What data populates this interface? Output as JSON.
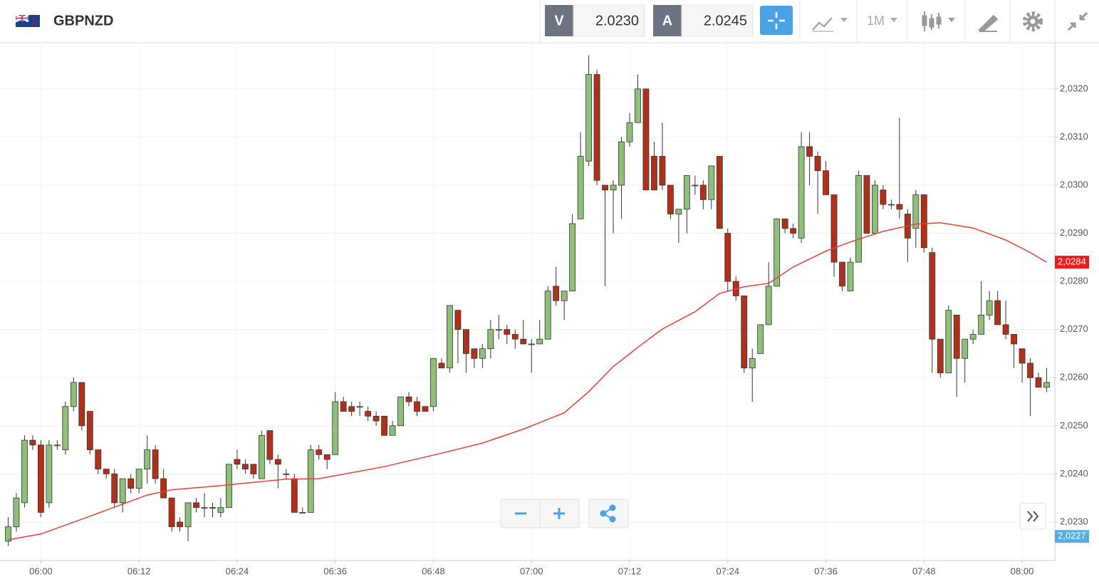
{
  "toolbar": {
    "symbol": "GBPNZD",
    "bid_label": "V",
    "bid": "2.0230",
    "ask_label": "A",
    "ask": "2.0245",
    "timeframe": "1M"
  },
  "chart_data": {
    "type": "candlestick",
    "up_color": "#8fbf7a",
    "down_color": "#b0301a",
    "x": [
      "05:56",
      "05:57",
      "05:58",
      "05:59",
      "06:00",
      "06:01",
      "06:02",
      "06:03",
      "06:04",
      "06:05",
      "06:06",
      "06:07",
      "06:08",
      "06:09",
      "06:10",
      "06:11",
      "06:12",
      "06:13",
      "06:14",
      "06:15",
      "06:16",
      "06:17",
      "06:18",
      "06:19",
      "06:20",
      "06:21",
      "06:22",
      "06:23",
      "06:24",
      "06:25",
      "06:26",
      "06:27",
      "06:28",
      "06:29",
      "06:30",
      "06:31",
      "06:32",
      "06:33",
      "06:34",
      "06:35",
      "06:36",
      "06:37",
      "06:38",
      "06:39",
      "06:40",
      "06:41",
      "06:42",
      "06:43",
      "06:44",
      "06:45",
      "06:46",
      "06:47",
      "06:48",
      "06:49",
      "06:50",
      "06:51",
      "06:52",
      "06:53",
      "06:54",
      "06:55",
      "06:56",
      "06:57",
      "06:58",
      "06:59",
      "07:00",
      "07:01",
      "07:02",
      "07:03",
      "07:04",
      "07:05",
      "07:06",
      "07:07",
      "07:08",
      "07:09",
      "07:10",
      "07:11",
      "07:12",
      "07:13",
      "07:14",
      "07:15",
      "07:16",
      "07:17",
      "07:18",
      "07:19",
      "07:20",
      "07:21",
      "07:22",
      "07:23",
      "07:24",
      "07:25",
      "07:26",
      "07:27",
      "07:28",
      "07:29",
      "07:30",
      "07:31",
      "07:32",
      "07:33",
      "07:34",
      "07:35",
      "07:36",
      "07:37",
      "07:38",
      "07:39",
      "07:40",
      "07:41",
      "07:42",
      "07:43",
      "07:44",
      "07:45",
      "07:46",
      "07:47",
      "07:48",
      "07:49",
      "07:50",
      "07:51",
      "07:52",
      "07:53",
      "07:54",
      "07:55",
      "07:56",
      "07:57",
      "07:58",
      "07:59",
      "08:00",
      "08:01",
      "08:02",
      "08:03"
    ],
    "open": [
      2.0226,
      2.0229,
      2.0234,
      2.0247,
      2.0246,
      2.0234,
      2.0246,
      2.0245,
      2.0254,
      2.0259,
      2.0253,
      2.0245,
      2.0241,
      2.024,
      2.0234,
      2.0239,
      2.0237,
      2.0241,
      2.0245,
      2.0239,
      2.0235,
      2.023,
      2.0229,
      2.0234,
      2.0233,
      2.0233,
      2.0232,
      2.0233,
      2.0243,
      2.0242,
      2.0242,
      2.0239,
      2.0249,
      2.0243,
      2.024,
      2.0239,
      2.0232,
      2.0232,
      2.0245,
      2.0244,
      2.0244,
      2.0255,
      2.0254,
      2.0254,
      2.0253,
      2.0252,
      2.0252,
      2.0248,
      2.025,
      2.0256,
      2.0255,
      2.0254,
      2.0254,
      2.0263,
      2.0262,
      2.0274,
      2.027,
      2.0266,
      2.0264,
      2.0266,
      2.027,
      2.027,
      2.0269,
      2.0268,
      2.0267,
      2.0267,
      2.0268,
      2.0279,
      2.0276,
      2.0278,
      2.0293,
      2.0305,
      2.0323,
      2.03,
      2.0299,
      2.03,
      2.0309,
      2.0313,
      2.032,
      2.0306,
      2.0306,
      2.03,
      2.0294,
      2.0295,
      2.03,
      2.03,
      2.0297,
      2.0306,
      2.029,
      2.028,
      2.0277,
      2.0262,
      2.0265,
      2.0271,
      2.0279,
      2.0293,
      2.0291,
      2.0289,
      2.0308,
      2.0306,
      2.0303,
      2.0298,
      2.0284,
      2.0278,
      2.0284,
      2.0302,
      2.029,
      2.0299,
      2.0296,
      2.0296,
      2.0294,
      2.0291,
      2.0298,
      2.0286,
      2.0268,
      2.0261,
      2.0273,
      2.0264,
      2.0268,
      2.0269,
      2.0273,
      2.0276,
      2.0271,
      2.0269,
      2.0266,
      2.0263,
      2.026,
      2.0258
    ],
    "high": [
      2.0231,
      2.0236,
      2.0248,
      2.0248,
      2.0247,
      2.0247,
      2.0247,
      2.0255,
      2.026,
      2.0259,
      2.0253,
      2.0245,
      2.0241,
      2.0241,
      2.0239,
      2.024,
      2.0241,
      2.0248,
      2.0246,
      2.0241,
      2.0235,
      2.0231,
      2.0234,
      2.0235,
      2.0236,
      2.0234,
      2.0235,
      2.0242,
      2.0245,
      2.0243,
      2.0242,
      2.0249,
      2.0249,
      2.0244,
      2.0241,
      2.024,
      2.0233,
      2.0246,
      2.0246,
      2.0244,
      2.0257,
      2.0256,
      2.0255,
      2.0255,
      2.0254,
      2.0253,
      2.0252,
      2.0251,
      2.0256,
      2.0257,
      2.0256,
      2.0254,
      2.0264,
      2.0264,
      2.0275,
      2.0274,
      2.027,
      2.0266,
      2.0267,
      2.0272,
      2.0273,
      2.0271,
      2.027,
      2.0272,
      2.0268,
      2.0272,
      2.0279,
      2.0283,
      2.0278,
      2.0294,
      2.0311,
      2.0327,
      2.0324,
      2.03,
      2.0301,
      2.031,
      2.0315,
      2.0323,
      2.032,
      2.0309,
      2.0313,
      2.03,
      2.0295,
      2.0302,
      2.0302,
      2.0301,
      2.0304,
      2.0306,
      2.0291,
      2.0281,
      2.0277,
      2.0266,
      2.0271,
      2.0284,
      2.0293,
      2.0293,
      2.0292,
      2.0311,
      2.0311,
      2.0307,
      2.0305,
      2.0298,
      2.0284,
      2.0285,
      2.0303,
      2.0302,
      2.0301,
      2.03,
      2.0297,
      2.0314,
      2.0295,
      2.0299,
      2.0298,
      2.0287,
      2.0268,
      2.0275,
      2.0273,
      2.0268,
      2.027,
      2.028,
      2.0278,
      2.0278,
      2.0276,
      2.0269,
      2.0266,
      2.0264,
      2.0261,
      2.0262
    ],
    "low": [
      2.0225,
      2.0228,
      2.0233,
      2.0245,
      2.0231,
      2.0233,
      2.0245,
      2.0244,
      2.0253,
      2.0249,
      2.0244,
      2.024,
      2.0239,
      2.0233,
      2.0232,
      2.0236,
      2.0236,
      2.0238,
      2.0238,
      2.0235,
      2.0228,
      2.0228,
      2.0226,
      2.0232,
      2.0231,
      2.0231,
      2.0231,
      2.0233,
      2.0241,
      2.024,
      2.0239,
      2.0239,
      2.0242,
      2.0237,
      2.0239,
      2.0232,
      2.0232,
      2.0232,
      2.0243,
      2.0241,
      2.0244,
      2.0253,
      2.0252,
      2.0252,
      2.0251,
      2.025,
      2.0248,
      2.0248,
      2.025,
      2.0254,
      2.0252,
      2.0253,
      2.0253,
      2.0262,
      2.0261,
      2.0263,
      2.0261,
      2.0262,
      2.0262,
      2.0264,
      2.0268,
      2.0267,
      2.0266,
      2.0267,
      2.0261,
      2.0267,
      2.0268,
      2.0275,
      2.0272,
      2.0278,
      2.0293,
      2.0304,
      2.03,
      2.0279,
      2.029,
      2.0293,
      2.0308,
      2.0313,
      2.0299,
      2.0299,
      2.0299,
      2.0293,
      2.0288,
      2.029,
      2.0298,
      2.0295,
      2.0295,
      2.0291,
      2.0278,
      2.0276,
      2.0261,
      2.0255,
      2.0265,
      2.0271,
      2.0279,
      2.029,
      2.0289,
      2.0288,
      2.03,
      2.0294,
      2.0298,
      2.0281,
      2.0278,
      2.0278,
      2.0284,
      2.029,
      2.029,
      2.0295,
      2.0295,
      2.0293,
      2.0284,
      2.0287,
      2.0286,
      2.0261,
      2.026,
      2.0261,
      2.0256,
      2.0259,
      2.0267,
      2.0269,
      2.0272,
      2.0271,
      2.0268,
      2.0262,
      2.0259,
      2.0252,
      2.0258,
      2.0257
    ],
    "close": [
      2.0229,
      2.0235,
      2.0247,
      2.0246,
      2.0232,
      2.0246,
      2.0246,
      2.0254,
      2.0259,
      2.025,
      2.0245,
      2.0241,
      2.024,
      2.0234,
      2.0239,
      2.0237,
      2.0241,
      2.0245,
      2.0239,
      2.0235,
      2.0229,
      2.0229,
      2.0234,
      2.0233,
      2.0233,
      2.0233,
      2.0233,
      2.0242,
      2.0242,
      2.0241,
      2.024,
      2.0248,
      2.0243,
      2.0242,
      2.024,
      2.0232,
      2.0232,
      2.0245,
      2.0244,
      2.0243,
      2.0255,
      2.0253,
      2.0253,
      2.0254,
      2.0252,
      2.0251,
      2.0248,
      2.025,
      2.0256,
      2.0255,
      2.0253,
      2.0253,
      2.0264,
      2.0262,
      2.0275,
      2.027,
      2.0265,
      2.0264,
      2.0266,
      2.027,
      2.027,
      2.0269,
      2.0268,
      2.0267,
      2.0267,
      2.0268,
      2.0278,
      2.0276,
      2.0278,
      2.0292,
      2.0306,
      2.0323,
      2.0301,
      2.0299,
      2.03,
      2.0309,
      2.0313,
      2.032,
      2.0299,
      2.0299,
      2.03,
      2.0294,
      2.0295,
      2.0302,
      2.03,
      2.0297,
      2.0304,
      2.0291,
      2.028,
      2.0277,
      2.0262,
      2.0264,
      2.0271,
      2.0279,
      2.0293,
      2.0291,
      2.029,
      2.0308,
      2.0306,
      2.0303,
      2.0298,
      2.0284,
      2.0279,
      2.0284,
      2.0302,
      2.029,
      2.03,
      2.0296,
      2.0296,
      2.0295,
      2.0289,
      2.0298,
      2.0287,
      2.0268,
      2.0261,
      2.0274,
      2.0264,
      2.0268,
      2.0269,
      2.0273,
      2.0276,
      2.0271,
      2.0269,
      2.0267,
      2.0263,
      2.026,
      2.0258,
      2.0259
    ],
    "ma": {
      "color": "#e8403a",
      "x": [
        "05:56",
        "06:00",
        "06:06",
        "06:13",
        "06:16",
        "06:21",
        "06:30",
        "06:34",
        "06:42",
        "06:49",
        "06:54",
        "06:59",
        "07:04",
        "07:07",
        "07:10",
        "07:13",
        "07:16",
        "07:20",
        "07:23",
        "07:26",
        "07:29",
        "07:32",
        "07:36",
        "07:39",
        "07:43",
        "07:47",
        "07:50",
        "07:54",
        "07:58",
        "08:01",
        "08:03"
      ],
      "values": [
        2.02263,
        2.02275,
        2.02312,
        2.02356,
        2.02367,
        2.02374,
        2.02389,
        2.0239,
        2.02415,
        2.02443,
        2.02464,
        2.02493,
        2.02527,
        2.02571,
        2.02623,
        2.02663,
        2.02701,
        2.02737,
        2.02775,
        2.02789,
        2.02796,
        2.0283,
        2.02863,
        2.02882,
        2.02904,
        2.02919,
        2.02922,
        2.02911,
        2.02886,
        2.0286,
        2.0284
      ]
    },
    "price_labels": [
      {
        "value": 2.0284,
        "label": "2,0284",
        "color": "#ee1c1c"
      },
      {
        "value": 2.0227,
        "label": "2,0227",
        "color": "#56aee0"
      }
    ],
    "xlim": [
      "05:55",
      "08:04"
    ],
    "ylim": [
      2.0222,
      2.03296
    ],
    "xticks": [
      "06:00",
      "06:12",
      "06:24",
      "06:36",
      "06:48",
      "07:00",
      "07:12",
      "07:24",
      "07:36",
      "07:48",
      "08:00"
    ],
    "yticks": [
      {
        "value": 2.023,
        "label": "2,0230"
      },
      {
        "value": 2.024,
        "label": "2,0240"
      },
      {
        "value": 2.025,
        "label": "2,0250"
      },
      {
        "value": 2.026,
        "label": "2,0260"
      },
      {
        "value": 2.027,
        "label": "2,0270"
      },
      {
        "value": 2.028,
        "label": "2,0280"
      },
      {
        "value": 2.029,
        "label": "2,0290"
      },
      {
        "value": 2.03,
        "label": "2,0300"
      },
      {
        "value": 2.031,
        "label": "2,0310"
      },
      {
        "value": 2.032,
        "label": "2,0320"
      }
    ],
    "grid": true
  }
}
